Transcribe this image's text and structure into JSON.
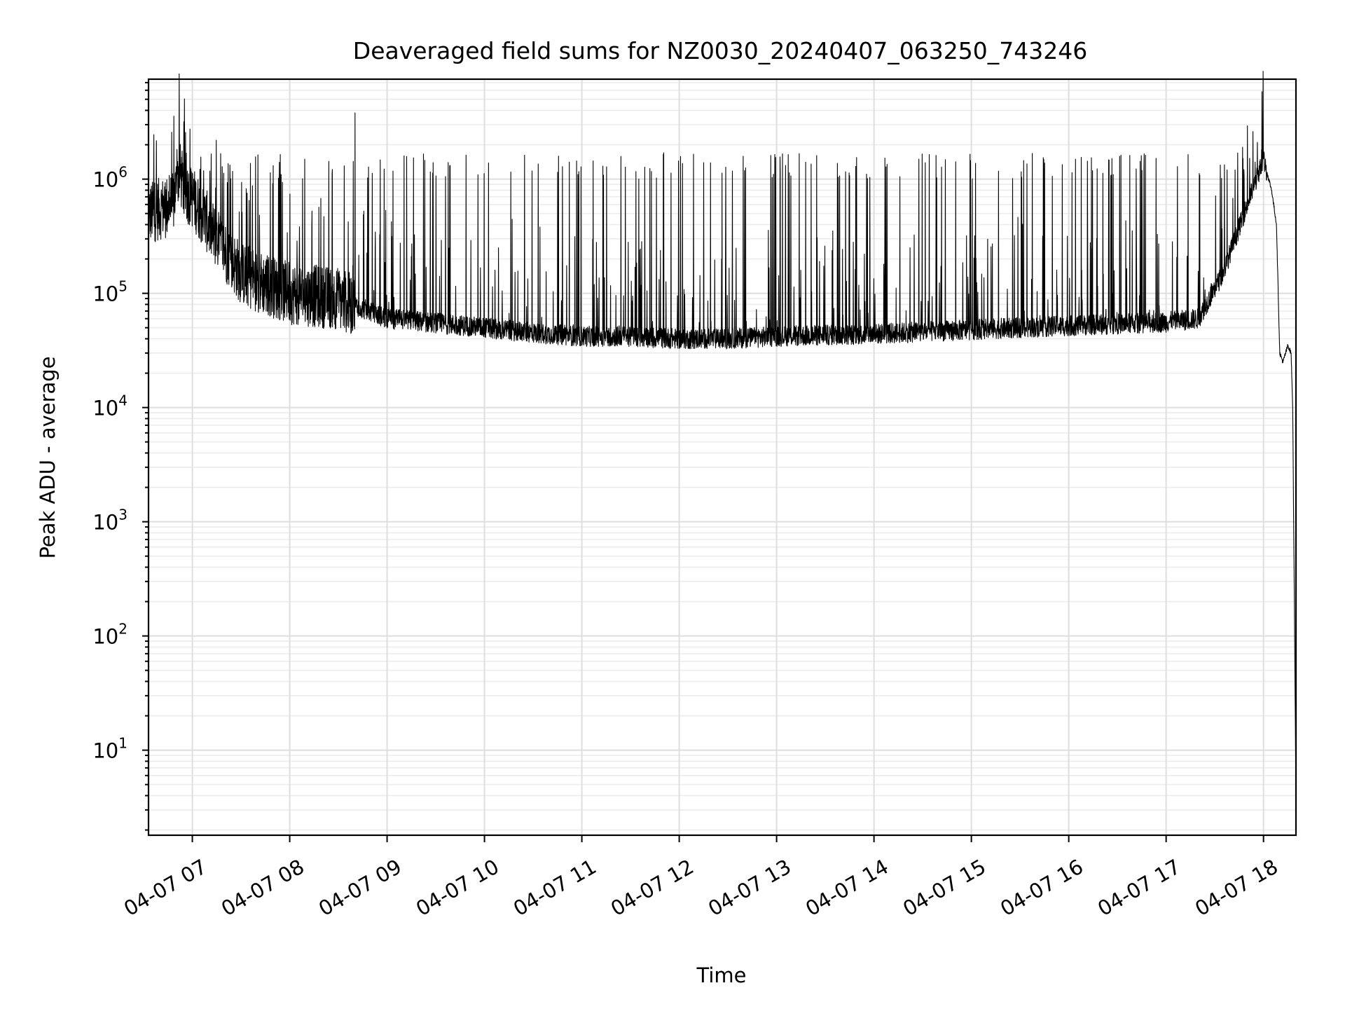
{
  "chart_data": {
    "type": "line",
    "title": "Deaveraged field sums for NZ0030_20240407_063250_743246",
    "xlabel": "Time",
    "ylabel": "Peak ADU - average",
    "yscale": "log",
    "grid": "major and minor",
    "legend": "none",
    "xlim": [
      "2024-04-07T06:33",
      "2024-04-07T18:20"
    ],
    "ylim": [
      1.8,
      7500000
    ],
    "x_tick_labels": [
      "04-07 07",
      "04-07 08",
      "04-07 09",
      "04-07 10",
      "04-07 11",
      "04-07 12",
      "04-07 13",
      "04-07 14",
      "04-07 15",
      "04-07 16",
      "04-07 17",
      "04-07 18"
    ],
    "x_ticks": [
      "2024-04-07T07:00",
      "2024-04-07T08:00",
      "2024-04-07T09:00",
      "2024-04-07T10:00",
      "2024-04-07T11:00",
      "2024-04-07T12:00",
      "2024-04-07T13:00",
      "2024-04-07T14:00",
      "2024-04-07T15:00",
      "2024-04-07T16:00",
      "2024-04-07T17:00",
      "2024-04-07T18:00"
    ],
    "y_ticks": [
      {
        "value": 10,
        "base": "10",
        "exp": "1"
      },
      {
        "value": 100,
        "base": "10",
        "exp": "2"
      },
      {
        "value": 1000,
        "base": "10",
        "exp": "3"
      },
      {
        "value": 10000,
        "base": "10",
        "exp": "4"
      },
      {
        "value": 100000,
        "base": "10",
        "exp": "5"
      },
      {
        "value": 1000000,
        "base": "10",
        "exp": "6"
      }
    ],
    "series": [
      {
        "color": "#000000",
        "x": [
          "2024-04-07T06:33",
          "2024-04-07T06:40",
          "2024-04-07T06:48",
          "2024-04-07T06:52",
          "2024-04-07T06:55",
          "2024-04-07T07:00",
          "2024-04-07T07:15",
          "2024-04-07T07:30",
          "2024-04-07T07:45",
          "2024-04-07T08:00",
          "2024-04-07T08:30",
          "2024-04-07T09:00",
          "2024-04-07T09:30",
          "2024-04-07T10:00",
          "2024-04-07T10:30",
          "2024-04-07T11:00",
          "2024-04-07T11:30",
          "2024-04-07T12:00",
          "2024-04-07T12:30",
          "2024-04-07T13:00",
          "2024-04-07T13:30",
          "2024-04-07T14:00",
          "2024-04-07T14:30",
          "2024-04-07T15:00",
          "2024-04-07T15:30",
          "2024-04-07T16:00",
          "2024-04-07T16:30",
          "2024-04-07T17:00",
          "2024-04-07T17:20",
          "2024-04-07T17:35",
          "2024-04-07T17:50",
          "2024-04-07T18:00",
          "2024-04-07T18:05",
          "2024-04-07T18:08",
          "2024-04-07T18:10",
          "2024-04-07T18:12",
          "2024-04-07T18:15",
          "2024-04-07T18:17",
          "2024-04-07T18:18",
          "2024-04-07T18:19",
          "2024-04-07T18:20"
        ],
        "y": [
          500000,
          550000,
          600000,
          1200000,
          800000,
          700000,
          300000,
          150000,
          120000,
          100000,
          90000,
          60000,
          55000,
          50000,
          45000,
          42000,
          42000,
          40000,
          40000,
          42000,
          43000,
          44000,
          46000,
          48000,
          50000,
          52000,
          54000,
          56000,
          60000,
          150000,
          600000,
          1500000,
          800000,
          400000,
          30000,
          25000,
          35000,
          30000,
          10000,
          200,
          3.8
        ],
        "spikes_peak_range": [
          1000000,
          1700000
        ],
        "spike_max": 3800000
      }
    ]
  }
}
